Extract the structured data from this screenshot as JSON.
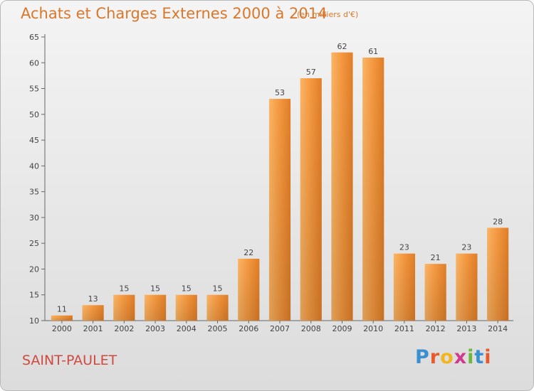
{
  "chart_data": {
    "type": "bar",
    "title": "Achats et Charges Externes 2000 à 2014",
    "subtitle": "(en milliers d'€)",
    "categories": [
      "2000",
      "2001",
      "2002",
      "2003",
      "2004",
      "2005",
      "2006",
      "2007",
      "2008",
      "2009",
      "2010",
      "2011",
      "2012",
      "2013",
      "2014"
    ],
    "values": [
      11,
      13,
      15,
      15,
      15,
      15,
      22,
      53,
      57,
      62,
      61,
      23,
      21,
      23,
      28
    ],
    "ylim": [
      10,
      65
    ],
    "yticks": [
      10,
      15,
      20,
      25,
      30,
      35,
      40,
      45,
      50,
      55,
      60,
      65
    ],
    "grid": false,
    "bar_color": "#f0963c",
    "xlabel": "",
    "ylabel": ""
  },
  "commune": "SAINT-PAULET",
  "logo": {
    "letters": [
      "P",
      "r",
      "o",
      "x",
      "i",
      "t",
      "i"
    ],
    "colors": [
      "#3a8fd0",
      "#e85a2a",
      "#f2b51e",
      "#d03a8a",
      "#6cb83a",
      "#3a8fd0",
      "#e85a2a"
    ]
  }
}
